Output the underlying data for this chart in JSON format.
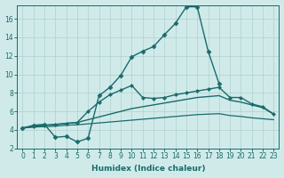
{
  "xlabel": "Humidex (Indice chaleur)",
  "xlim": [
    -0.5,
    23.5
  ],
  "ylim": [
    2,
    17.5
  ],
  "yticks": [
    2,
    4,
    6,
    8,
    10,
    12,
    14,
    16
  ],
  "xticks": [
    0,
    1,
    2,
    3,
    4,
    5,
    6,
    7,
    8,
    9,
    10,
    11,
    12,
    13,
    14,
    15,
    16,
    17,
    18,
    19,
    20,
    21,
    22,
    23
  ],
  "xtick_labels": [
    "0",
    "1",
    "2",
    "3",
    "4",
    "5",
    "6",
    "7",
    "8",
    "9",
    "10",
    "11",
    "12",
    "13",
    "14",
    "15",
    "16",
    "17",
    "18",
    "19",
    "20",
    "21",
    "22",
    "23"
  ],
  "bg_color": "#d0eaea",
  "grid_color": "#b0d0d0",
  "line_color": "#1a6b6b",
  "lines": [
    {
      "x": [
        0,
        1,
        2,
        3,
        4,
        5,
        6,
        7,
        8,
        9,
        10,
        11,
        12,
        13,
        14,
        15,
        16,
        17,
        18,
        19,
        20,
        21,
        22,
        23
      ],
      "y": [
        4.2,
        4.5,
        4.6,
        3.2,
        3.3,
        2.7,
        3.1,
        7.7,
        8.6,
        9.9,
        11.9,
        12.5,
        13.0,
        14.3,
        15.5,
        17.3,
        17.3,
        12.5,
        9.0,
        null,
        null,
        null,
        null,
        null
      ],
      "marker": "D",
      "markersize": 2.5,
      "linewidth": 1.0,
      "linestyle": "-"
    },
    {
      "x": [
        0,
        1,
        2,
        3,
        4,
        5,
        6,
        7,
        8,
        9,
        10,
        11,
        12,
        13,
        14,
        15,
        16,
        17,
        18,
        19,
        20,
        21,
        22,
        23
      ],
      "y": [
        4.2,
        4.4,
        4.5,
        4.55,
        4.7,
        4.8,
        6.0,
        7.0,
        7.8,
        8.3,
        8.8,
        7.5,
        7.4,
        7.5,
        7.8,
        8.0,
        8.2,
        8.4,
        8.6,
        7.5,
        7.5,
        6.8,
        6.5,
        5.7
      ],
      "marker": "D",
      "markersize": 2.0,
      "linewidth": 1.0,
      "linestyle": "-"
    },
    {
      "x": [
        0,
        1,
        2,
        3,
        4,
        5,
        6,
        7,
        8,
        9,
        10,
        11,
        12,
        13,
        14,
        15,
        16,
        17,
        18,
        19,
        20,
        21,
        22,
        23
      ],
      "y": [
        4.2,
        4.35,
        4.5,
        4.6,
        4.7,
        4.8,
        5.1,
        5.4,
        5.7,
        6.0,
        6.3,
        6.5,
        6.7,
        6.9,
        7.1,
        7.3,
        7.5,
        7.6,
        7.7,
        7.2,
        7.0,
        6.7,
        6.4,
        5.7
      ],
      "marker": null,
      "markersize": 0,
      "linewidth": 1.0,
      "linestyle": "-"
    },
    {
      "x": [
        0,
        1,
        2,
        3,
        4,
        5,
        6,
        7,
        8,
        9,
        10,
        11,
        12,
        13,
        14,
        15,
        16,
        17,
        18,
        19,
        20,
        21,
        22,
        23
      ],
      "y": [
        4.2,
        4.3,
        4.35,
        4.4,
        4.5,
        4.55,
        4.65,
        4.75,
        4.85,
        4.95,
        5.05,
        5.15,
        5.25,
        5.35,
        5.45,
        5.55,
        5.65,
        5.7,
        5.75,
        5.55,
        5.45,
        5.3,
        5.2,
        5.1
      ],
      "marker": null,
      "markersize": 0,
      "linewidth": 0.9,
      "linestyle": "-"
    }
  ]
}
